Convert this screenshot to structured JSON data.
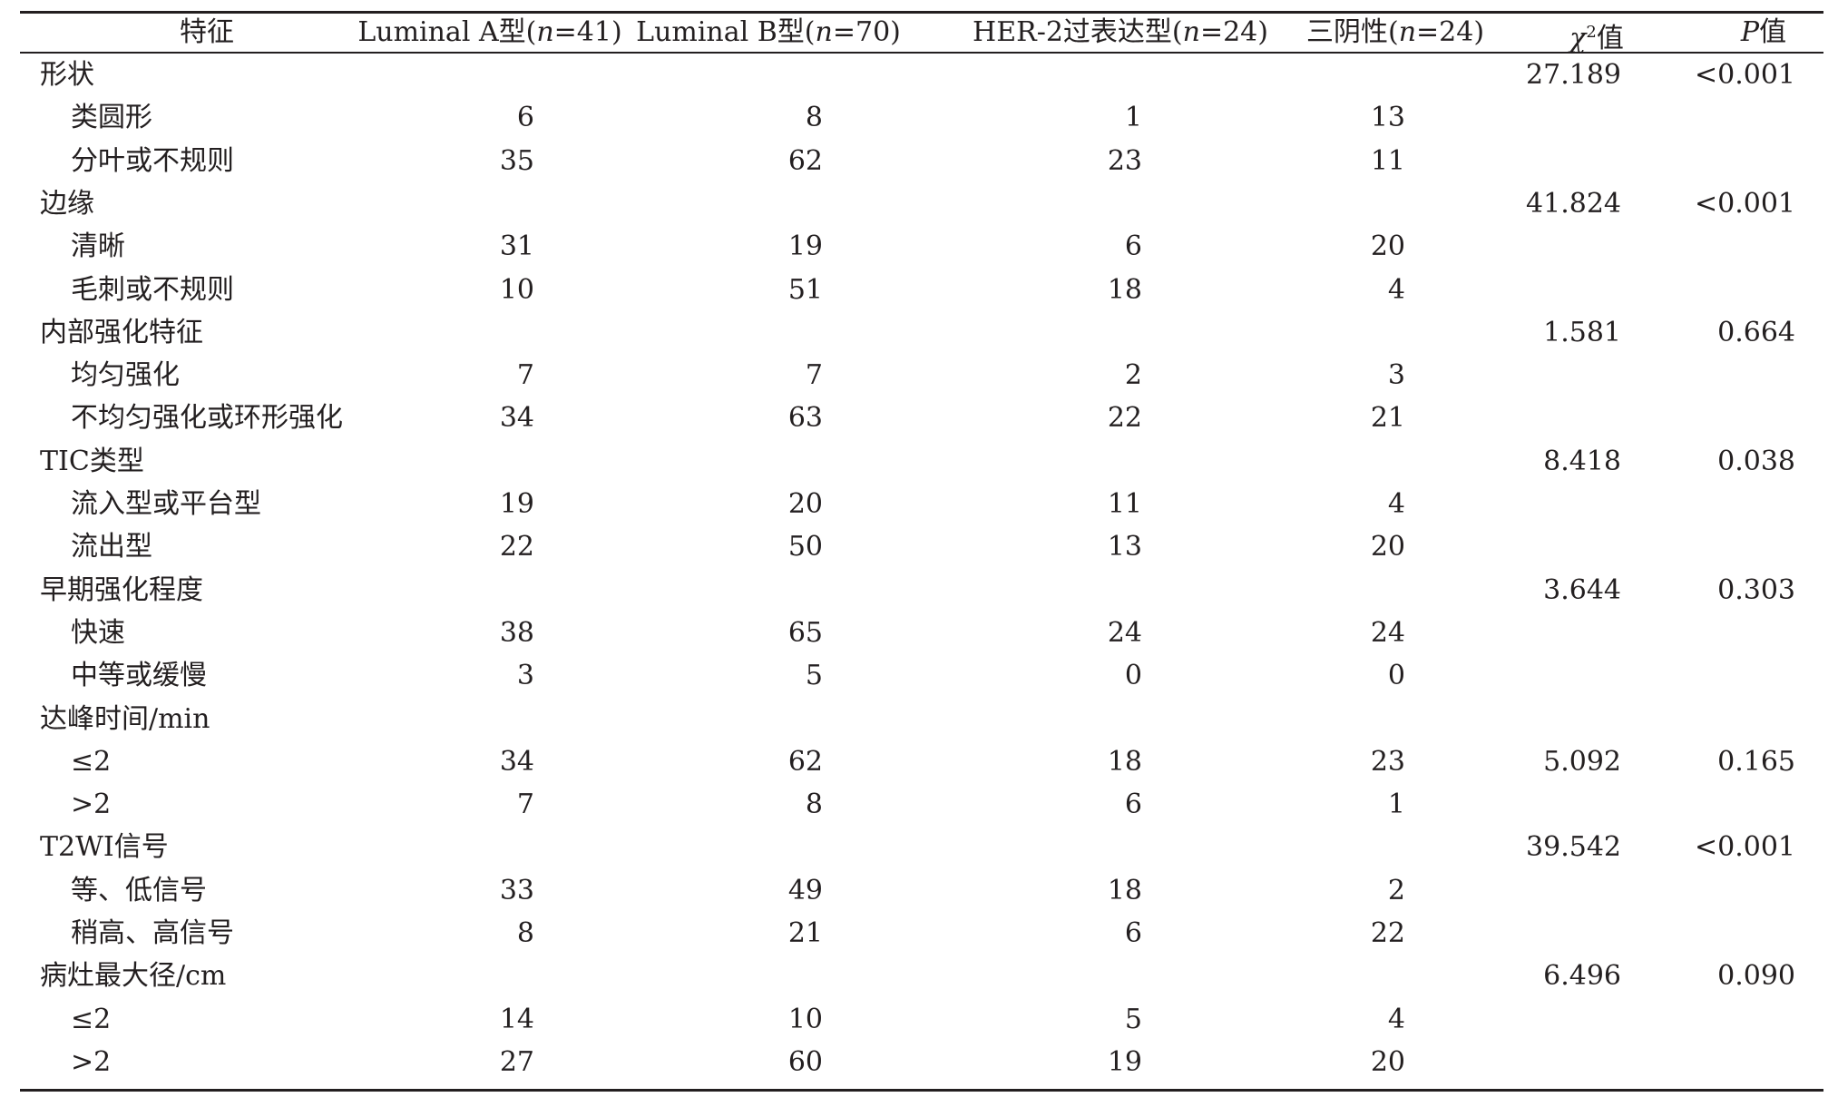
{
  "header": {
    "feature": "特征",
    "lumA_pre": "Luminal A型(",
    "lumA_n": "n",
    "lumA_post": "=41)",
    "lumB_pre": "Luminal B型(",
    "lumB_n": "n",
    "lumB_post": "=70)",
    "her2_pre": "HER-2过表达型(",
    "her2_n": "n",
    "her2_post": "=24)",
    "tn_pre": "三阴性(",
    "tn_n": "n",
    "tn_post": "=24)",
    "chi_sym": "χ",
    "chi_sup": "2",
    "chi_post": "值",
    "p_sym": "P",
    "p_post": "值"
  },
  "rows": [
    {
      "label": "形状",
      "sub": false,
      "lumA": "",
      "lumB": "",
      "her2": "",
      "tn": "",
      "chi": "27.189",
      "p": "<0.001"
    },
    {
      "label": "类圆形",
      "sub": true,
      "lumA": "6",
      "lumB": "8",
      "her2": "1",
      "tn": "13",
      "chi": "",
      "p": ""
    },
    {
      "label": "分叶或不规则",
      "sub": true,
      "lumA": "35",
      "lumB": "62",
      "her2": "23",
      "tn": "11",
      "chi": "",
      "p": ""
    },
    {
      "label": "边缘",
      "sub": false,
      "lumA": "",
      "lumB": "",
      "her2": "",
      "tn": "",
      "chi": "41.824",
      "p": "<0.001"
    },
    {
      "label": "清晰",
      "sub": true,
      "lumA": "31",
      "lumB": "19",
      "her2": "6",
      "tn": "20",
      "chi": "",
      "p": ""
    },
    {
      "label": "毛刺或不规则",
      "sub": true,
      "lumA": "10",
      "lumB": "51",
      "her2": "18",
      "tn": "4",
      "chi": "",
      "p": ""
    },
    {
      "label": "内部强化特征",
      "sub": false,
      "lumA": "",
      "lumB": "",
      "her2": "",
      "tn": "",
      "chi": "1.581",
      "p": "0.664"
    },
    {
      "label": "均匀强化",
      "sub": true,
      "lumA": "7",
      "lumB": "7",
      "her2": "2",
      "tn": "3",
      "chi": "",
      "p": ""
    },
    {
      "label": "不均匀强化或环形强化",
      "sub": true,
      "lumA": "34",
      "lumB": "63",
      "her2": "22",
      "tn": "21",
      "chi": "",
      "p": ""
    },
    {
      "label": "TIC类型",
      "sub": false,
      "lumA": "",
      "lumB": "",
      "her2": "",
      "tn": "",
      "chi": "8.418",
      "p": "0.038"
    },
    {
      "label": "流入型或平台型",
      "sub": true,
      "lumA": "19",
      "lumB": "20",
      "her2": "11",
      "tn": "4",
      "chi": "",
      "p": ""
    },
    {
      "label": "流出型",
      "sub": true,
      "lumA": "22",
      "lumB": "50",
      "her2": "13",
      "tn": "20",
      "chi": "",
      "p": ""
    },
    {
      "label": "早期强化程度",
      "sub": false,
      "lumA": "",
      "lumB": "",
      "her2": "",
      "tn": "",
      "chi": "3.644",
      "p": "0.303"
    },
    {
      "label": "快速",
      "sub": true,
      "lumA": "38",
      "lumB": "65",
      "her2": "24",
      "tn": "24",
      "chi": "",
      "p": ""
    },
    {
      "label": "中等或缓慢",
      "sub": true,
      "lumA": "3",
      "lumB": "5",
      "her2": "0",
      "tn": "0",
      "chi": "",
      "p": ""
    },
    {
      "label": "达峰时间/min",
      "sub": false,
      "lumA": "",
      "lumB": "",
      "her2": "",
      "tn": "",
      "chi": "",
      "p": ""
    },
    {
      "label": "≤2",
      "sub": true,
      "lumA": "34",
      "lumB": "62",
      "her2": "18",
      "tn": "23",
      "chi": "5.092",
      "p": "0.165"
    },
    {
      "label": ">2",
      "sub": true,
      "lumA": "7",
      "lumB": "8",
      "her2": "6",
      "tn": "1",
      "chi": "",
      "p": ""
    },
    {
      "label": "T2WI信号",
      "sub": false,
      "lumA": "",
      "lumB": "",
      "her2": "",
      "tn": "",
      "chi": "39.542",
      "p": "<0.001"
    },
    {
      "label": "等、低信号",
      "sub": true,
      "lumA": "33",
      "lumB": "49",
      "her2": "18",
      "tn": "2",
      "chi": "",
      "p": ""
    },
    {
      "label": "稍高、高信号",
      "sub": true,
      "lumA": "8",
      "lumB": "21",
      "her2": "6",
      "tn": "22",
      "chi": "",
      "p": ""
    },
    {
      "label": "病灶最大径/cm",
      "sub": false,
      "lumA": "",
      "lumB": "",
      "her2": "",
      "tn": "",
      "chi": "6.496",
      "p": "0.090"
    },
    {
      "label": "≤2",
      "sub": true,
      "lumA": "14",
      "lumB": "10",
      "her2": "5",
      "tn": "4",
      "chi": "",
      "p": ""
    },
    {
      "label": ">2",
      "sub": true,
      "lumA": "27",
      "lumB": "60",
      "her2": "19",
      "tn": "20",
      "chi": "",
      "p": ""
    }
  ]
}
